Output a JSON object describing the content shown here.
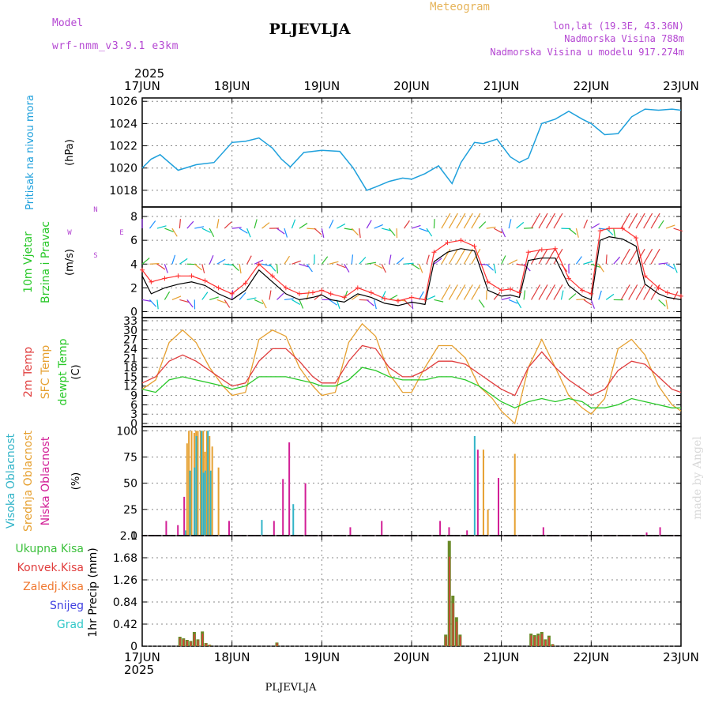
{
  "header": {
    "model_label": "Model",
    "model_name": "wrf-nmm_v3.9.1  e3km",
    "station": "PLJEVLJA",
    "product": "Meteogram",
    "lonlat": "lon,lat (19.3E, 43.36N)",
    "elevation": "Nadmorska Visina 788m",
    "model_elevation": "Nadmorska Visina u modelu 917.274m",
    "year_top": "2025",
    "year_bottom": "2025",
    "footer_station": "PLJEVLJA",
    "credit": "made by Angel"
  },
  "colors": {
    "pressure": "#1ea0dc",
    "t2m": "#e03c3c",
    "sfc": "#e6a030",
    "dewpt": "#28c828",
    "wind_speed": "#000000",
    "gust": "#ff3030",
    "high_cloud": "#32b4c8",
    "mid_cloud": "#e6a030",
    "low_cloud": "#d21e96",
    "precip_total": "#3cc03c",
    "precip_conv": "#e03c3c",
    "precip_frz": "#f07830",
    "snow": "#4040e0",
    "grad": "#32c8c8",
    "label_purple": "#b446d2",
    "label_gold": "#e6b45a"
  },
  "chart_data": [
    {
      "type": "line",
      "name": "pressure",
      "ylabel_side": "Pritisak na nivou mora",
      "unit": "(hPa)",
      "x_days": [
        "17JUN",
        "18JUN",
        "19JUN",
        "20JUN",
        "21JUN",
        "22JUN",
        "23JUN"
      ],
      "ylim": [
        1016.5,
        1026.3
      ],
      "yticks": [
        "1018",
        "1020",
        "1022",
        "1024",
        "1026"
      ],
      "ytick_values": [
        1018,
        1020,
        1022,
        1024,
        1026
      ],
      "x": [
        0,
        0.1,
        0.2,
        0.4,
        0.6,
        0.8,
        1.0,
        1.15,
        1.3,
        1.45,
        1.55,
        1.65,
        1.8,
        2.0,
        2.2,
        2.35,
        2.5,
        2.6,
        2.75,
        2.9,
        3.0,
        3.15,
        3.3,
        3.45,
        3.55,
        3.7,
        3.8,
        3.95,
        4.1,
        4.2,
        4.3,
        4.45,
        4.6,
        4.75,
        4.9,
        5.0,
        5.15,
        5.3,
        5.45,
        5.6,
        5.75,
        5.9,
        6.0
      ],
      "series": [
        {
          "values": [
            1020.0,
            1020.8,
            1021.2,
            1019.8,
            1020.3,
            1020.5,
            1022.3,
            1022.4,
            1022.7,
            1021.8,
            1020.8,
            1020.1,
            1021.4,
            1021.6,
            1021.5,
            1020.0,
            1018.0,
            1018.3,
            1018.8,
            1019.1,
            1019.0,
            1019.5,
            1020.2,
            1018.6,
            1020.5,
            1022.3,
            1022.2,
            1022.6,
            1021.0,
            1020.5,
            1020.9,
            1024.0,
            1024.4,
            1025.1,
            1024.4,
            1024.0,
            1023.0,
            1023.1,
            1024.6,
            1025.3,
            1025.2,
            1025.3,
            1025.2
          ]
        }
      ]
    },
    {
      "type": "line",
      "name": "wind",
      "ylabel_side": [
        "10m Vjetar",
        "Brzina i Pravac"
      ],
      "unit": "(m/s)",
      "compass_ns": "N",
      "compass_s": "S",
      "compass_w": "W",
      "compass_e": "E",
      "ylim": [
        -0.5,
        8.8
      ],
      "yticks": [
        "0",
        "2",
        "4",
        "6",
        "8"
      ],
      "ytick_values": [
        0,
        2,
        4,
        6,
        8
      ],
      "x": [
        0,
        0.1,
        0.25,
        0.4,
        0.55,
        0.7,
        0.85,
        1.0,
        1.15,
        1.3,
        1.45,
        1.6,
        1.75,
        1.9,
        2.0,
        2.1,
        2.25,
        2.4,
        2.55,
        2.7,
        2.85,
        3.0,
        3.15,
        3.25,
        3.4,
        3.55,
        3.7,
        3.85,
        4.0,
        4.1,
        4.2,
        4.3,
        4.45,
        4.6,
        4.75,
        4.9,
        5.0,
        5.1,
        5.2,
        5.35,
        5.5,
        5.6,
        5.75,
        5.85,
        6.0
      ],
      "series": [
        {
          "values": [
            3.0,
            1.5,
            2.0,
            2.3,
            2.5,
            2.2,
            1.5,
            1.0,
            1.8,
            3.5,
            2.5,
            1.5,
            1.0,
            1.2,
            1.4,
            1.0,
            0.8,
            1.5,
            1.2,
            0.7,
            0.5,
            0.8,
            0.6,
            4.2,
            5.0,
            5.3,
            5.1,
            1.8,
            1.3,
            1.4,
            1.2,
            4.3,
            4.5,
            4.5,
            2.2,
            1.3,
            1.0,
            6.0,
            6.3,
            6.1,
            5.5,
            2.3,
            1.5,
            1.2,
            1.0
          ]
        },
        {
          "values": [
            3.5,
            2.5,
            2.8,
            3.0,
            3.0,
            2.6,
            2.0,
            1.5,
            2.4,
            4.0,
            3.0,
            2.0,
            1.5,
            1.6,
            1.8,
            1.5,
            1.2,
            2.0,
            1.6,
            1.1,
            0.9,
            1.2,
            1.0,
            5.0,
            5.8,
            6.0,
            5.5,
            2.5,
            1.8,
            1.9,
            1.6,
            5.0,
            5.2,
            5.3,
            2.8,
            1.8,
            1.5,
            6.8,
            7.0,
            7.0,
            6.2,
            3.0,
            2.0,
            1.6,
            1.3
          ]
        }
      ]
    },
    {
      "type": "line",
      "name": "temperature",
      "ylabel_side": [
        "2m Temp",
        "SFC Temp",
        "dewpt Temp"
      ],
      "unit": "(C)",
      "ylim": [
        -1,
        34
      ],
      "yticks": [
        "0",
        "3",
        "6",
        "9",
        "12",
        "15",
        "18",
        "21",
        "24",
        "27",
        "30",
        "33"
      ],
      "ytick_values": [
        0,
        3,
        6,
        9,
        12,
        15,
        18,
        21,
        24,
        27,
        30,
        33
      ],
      "x": [
        0,
        0.15,
        0.3,
        0.45,
        0.6,
        0.75,
        0.9,
        1.0,
        1.15,
        1.3,
        1.45,
        1.6,
        1.75,
        1.9,
        2.0,
        2.15,
        2.3,
        2.45,
        2.6,
        2.75,
        2.9,
        3.0,
        3.15,
        3.3,
        3.45,
        3.6,
        3.75,
        3.9,
        4.0,
        4.15,
        4.3,
        4.45,
        4.6,
        4.75,
        4.9,
        5.0,
        5.15,
        5.3,
        5.45,
        5.6,
        5.75,
        5.9,
        6.0
      ],
      "series": [
        {
          "values": [
            13,
            15,
            20,
            22,
            20,
            17,
            14,
            12,
            13,
            20,
            24,
            24,
            20,
            15,
            13,
            13,
            20,
            25,
            24,
            18,
            15,
            15,
            17,
            20,
            20,
            19,
            16,
            13,
            11,
            9,
            18,
            23,
            18,
            14,
            11,
            9,
            11,
            17,
            20,
            19,
            15,
            11,
            10
          ]
        },
        {
          "values": [
            11,
            14,
            26,
            30,
            26,
            18,
            12,
            9,
            10,
            27,
            30,
            28,
            18,
            12,
            9,
            10,
            26,
            32,
            28,
            16,
            10,
            10,
            18,
            25,
            25,
            21,
            12,
            8,
            4,
            0,
            18,
            27,
            18,
            9,
            5,
            3,
            8,
            24,
            27,
            22,
            12,
            6,
            4
          ]
        },
        {
          "values": [
            11,
            10,
            14,
            15,
            14,
            13,
            12,
            11,
            12,
            15,
            15,
            15,
            14,
            13,
            12,
            12,
            14,
            18,
            17,
            15,
            14,
            14,
            14,
            15,
            15,
            14,
            12,
            9,
            7,
            5,
            7,
            8,
            7,
            8,
            7,
            5,
            5,
            6,
            8,
            7,
            6,
            5,
            5
          ]
        }
      ]
    },
    {
      "type": "bar",
      "name": "clouds",
      "ylabel_side": [
        "Visoka Oblacnost",
        "Srednja Oblacnost",
        "Niska Oblacnost"
      ],
      "unit": "(%)",
      "ylim": [
        0,
        104
      ],
      "yticks": [
        "0",
        "25",
        "50",
        "75",
        "100"
      ],
      "ytick_values": [
        0,
        25,
        50,
        75,
        100
      ],
      "x": [
        0.25,
        0.38,
        0.45,
        0.5,
        0.52,
        0.55,
        0.58,
        0.6,
        0.62,
        0.65,
        0.68,
        0.7,
        0.72,
        0.75,
        0.78,
        0.85,
        0.95,
        1.15,
        1.35,
        1.45,
        1.55,
        1.62,
        1.7,
        1.8,
        2.05,
        2.3,
        2.45,
        2.55,
        2.65,
        2.8,
        2.95,
        3.3,
        3.4,
        3.6,
        3.72,
        3.8,
        3.85,
        3.95,
        4.15,
        4.45,
        4.95,
        5.4,
        5.6,
        5.75
      ],
      "series": [
        {
          "values": [
            0,
            0,
            0,
            5,
            0,
            62,
            0,
            65,
            95,
            0,
            100,
            60,
            62,
            100,
            62,
            0,
            0,
            0,
            15,
            0,
            0,
            0,
            30,
            0,
            0,
            0,
            0,
            0,
            0,
            0,
            0,
            0,
            0,
            0,
            95,
            0,
            0,
            0,
            0,
            0,
            0,
            0,
            0,
            0
          ]
        },
        {
          "values": [
            0,
            0,
            0,
            88,
            100,
            100,
            98,
            100,
            100,
            100,
            100,
            80,
            100,
            95,
            85,
            65,
            0,
            0,
            0,
            0,
            0,
            0,
            0,
            0,
            0,
            0,
            0,
            0,
            0,
            0,
            0,
            0,
            0,
            0,
            0,
            82,
            25,
            0,
            78,
            0,
            0,
            0,
            0,
            0
          ]
        },
        {
          "values": [
            14,
            10,
            37,
            0,
            0,
            0,
            0,
            0,
            0,
            0,
            0,
            0,
            0,
            0,
            0,
            0,
            14,
            0,
            0,
            14,
            54,
            89,
            0,
            50,
            0,
            8,
            0,
            0,
            14,
            0,
            0,
            14,
            8,
            5,
            82,
            0,
            0,
            55,
            0,
            8,
            0,
            0,
            3,
            8
          ]
        }
      ]
    },
    {
      "type": "bar",
      "name": "precip",
      "ylabel_side": "1hr Precip (mm)",
      "legend": [
        "Ukupna Kisa",
        "Konvek.Kisa",
        "Zaledj.Kisa",
        "Snijeg",
        "Grad"
      ],
      "ylim": [
        0,
        2.1
      ],
      "yticks": [
        "0",
        "0.42",
        "0.84",
        "1.26",
        "1.68",
        "2.1"
      ],
      "ytick_values": [
        0,
        0.42,
        0.84,
        1.26,
        1.68,
        2.1
      ],
      "x": [
        0.42,
        0.46,
        0.5,
        0.54,
        0.58,
        0.62,
        0.67,
        0.71,
        0.75,
        1.5,
        3.38,
        3.42,
        3.46,
        3.5,
        3.54,
        4.33,
        4.37,
        4.41,
        4.45,
        4.49,
        4.53,
        4.57
      ],
      "series": [
        {
          "values": [
            0.18,
            0.15,
            0.12,
            0.1,
            0.27,
            0.13,
            0.28,
            0.06,
            0.03,
            0.07,
            0.22,
            2.0,
            0.96,
            0.55,
            0.22,
            0.24,
            0.21,
            0.24,
            0.27,
            0.13,
            0.2,
            0.04
          ]
        }
      ]
    }
  ]
}
